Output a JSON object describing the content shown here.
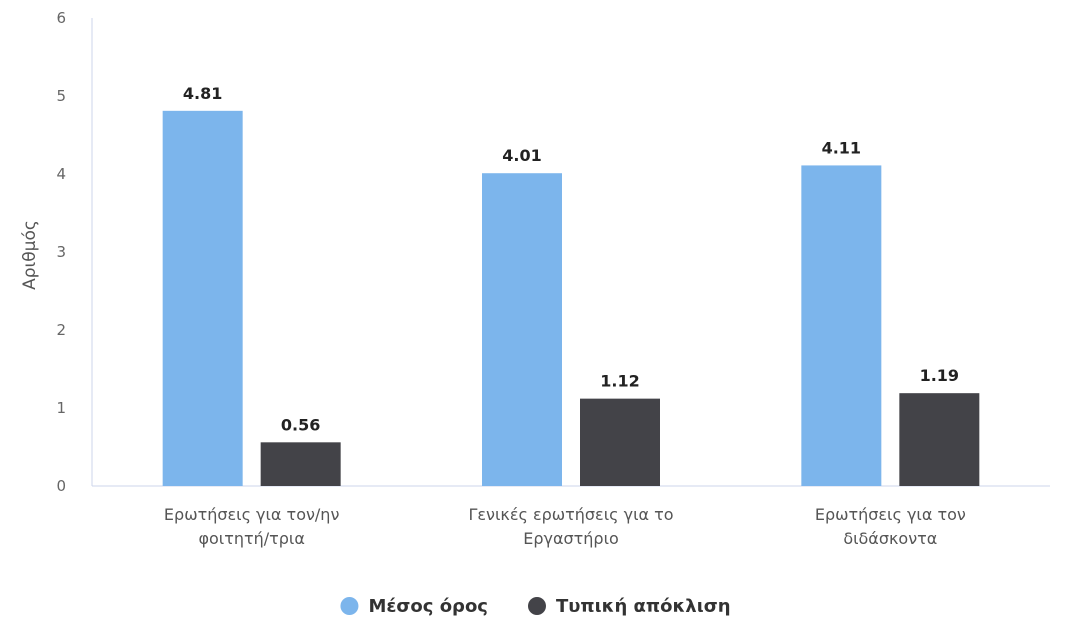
{
  "chart_data": {
    "type": "bar",
    "title": "",
    "xlabel": "",
    "ylabel": "Αριθμός",
    "ylim": [
      0,
      6
    ],
    "yticks": [
      0,
      1,
      2,
      3,
      4,
      5,
      6
    ],
    "grid": false,
    "legend_position": "bottom-center",
    "categories": [
      [
        "Ερωτήσεις για τον/ην",
        "φοιτητή/τρια"
      ],
      [
        "Γενικές ερωτήσεις για το",
        "Εργαστήριο"
      ],
      [
        "Ερωτήσεις για τον",
        "διδάσκοντα"
      ]
    ],
    "series": [
      {
        "name": "Μέσος όρος",
        "color": "#7cb5ec",
        "values": [
          4.81,
          4.01,
          4.11
        ],
        "labels": [
          "4.81",
          "4.01",
          "4.11"
        ]
      },
      {
        "name": "Τυπική απόκλιση",
        "color": "#434348",
        "values": [
          0.56,
          1.12,
          1.19
        ],
        "labels": [
          "0.56",
          "1.12",
          "1.19"
        ]
      }
    ],
    "axis_color": "#ccd6eb"
  }
}
